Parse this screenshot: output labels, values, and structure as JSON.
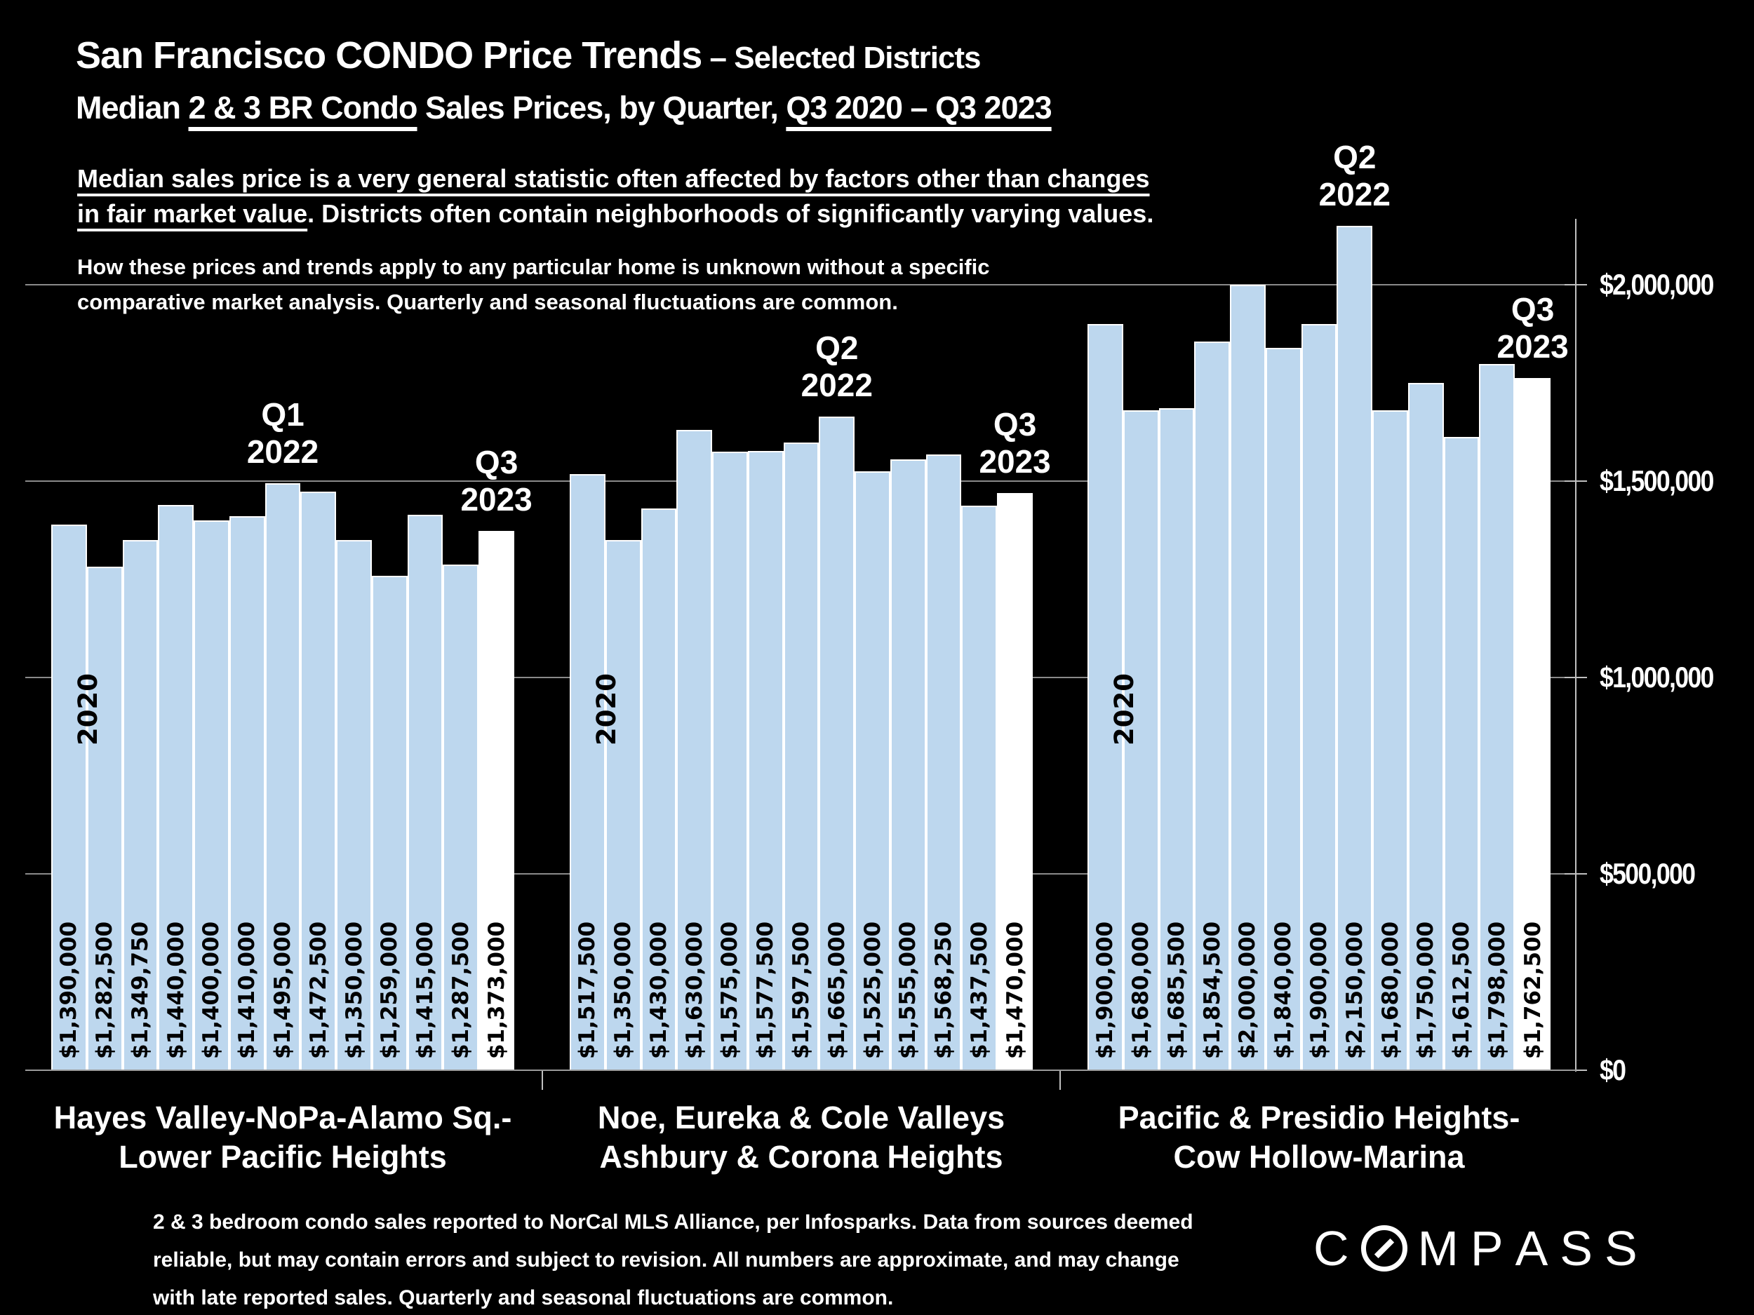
{
  "slide": {
    "title_line1_main": "San Francisco CONDO Price Trends",
    "title_line1_suffix": " – Selected Districts",
    "title_line2_segments": [
      {
        "text": "Median ",
        "underline": false
      },
      {
        "text": "2 & 3 BR Condo",
        "underline": true
      },
      {
        "text": " Sales Prices, by Quarter, ",
        "underline": false
      },
      {
        "text": "Q3 2020 – Q3 2023",
        "underline": true
      }
    ],
    "para1_lines": [
      [
        {
          "text": "Median sales price is a very general statistic often affected by factors other than changes",
          "underline": true
        }
      ],
      [
        {
          "text": "in fair market value",
          "underline": true
        },
        {
          "text": ". Districts often contain neighborhoods of significantly varying values.",
          "underline": false
        }
      ]
    ],
    "para2_lines": [
      "How these prices and trends apply to any particular home is unknown without a specific",
      "comparative market analysis. Quarterly and seasonal fluctuations are common."
    ],
    "footer_lines": [
      "2 & 3 bedroom condo sales reported to NorCal MLS Alliance, per Infosparks. Data from sources deemed",
      "reliable, but may contain errors and subject to revision. All numbers are approximate, and may change",
      "with late reported sales. Quarterly and seasonal fluctuations are common."
    ],
    "logo_text": "COMPASS"
  },
  "chart_data": {
    "type": "bar",
    "title": "Median 2 & 3 BR Condo Sales Prices, by Quarter, Q3 2020 – Q3 2023",
    "ylabel": "",
    "ylim": [
      0,
      2170000
    ],
    "grid": true,
    "legend_position": "none",
    "y_ticks": [
      {
        "label": "$2,000,000",
        "value": 2000000
      },
      {
        "label": "$1,500,000",
        "value": 1500000
      },
      {
        "label": "$1,000,000",
        "value": 1000000
      },
      {
        "label": "$500,000",
        "value": 500000
      },
      {
        "label": "$0",
        "value": 0
      }
    ],
    "quarter_range": "Q3 2020 – Q3 2023",
    "period_start_label": "2020",
    "colors": {
      "bar": "#bdd7ee",
      "highlight": "#ffffff",
      "grid": "#8a8a8a",
      "axis": "#c0c0c0",
      "value_text": "#000000"
    },
    "groups": [
      {
        "district_lines": [
          "Hayes Valley-NoPa-Alamo Sq.-",
          "Lower Pacific Heights"
        ],
        "values": [
          1390000,
          1282500,
          1349750,
          1440000,
          1400000,
          1410000,
          1495000,
          1472500,
          1350000,
          1259000,
          1415000,
          1287500,
          1373000
        ],
        "labels": [
          "$1,390,000",
          "$1,282,500",
          "$1,349,750",
          "$1,440,000",
          "$1,400,000",
          "$1,410,000",
          "$1,495,000",
          "$1,472,500",
          "$1,350,000",
          "$1,259,000",
          "$1,415,000",
          "$1,287,500",
          "$1,373,000"
        ],
        "highlight_index": 12,
        "annotations": [
          {
            "lines": [
              "Q1",
              "2022"
            ],
            "bar": 6
          },
          {
            "lines": [
              "Q3",
              "2023"
            ],
            "bar": 12
          }
        ]
      },
      {
        "district_lines": [
          "Noe, Eureka & Cole Valleys",
          "Ashbury & Corona Heights"
        ],
        "values": [
          1517500,
          1350000,
          1430000,
          1630000,
          1575000,
          1577500,
          1597500,
          1665000,
          1525000,
          1555000,
          1568250,
          1437500,
          1470000
        ],
        "labels": [
          "$1,517,500",
          "$1,350,000",
          "$1,430,000",
          "$1,630,000",
          "$1,575,000",
          "$1,577,500",
          "$1,597,500",
          "$1,665,000",
          "$1,525,000",
          "$1,555,000",
          "$1,568,250",
          "$1,437,500",
          "$1,470,000"
        ],
        "highlight_index": 12,
        "annotations": [
          {
            "lines": [
              "Q2",
              "2022"
            ],
            "bar": 7
          },
          {
            "lines": [
              "Q3",
              "2023"
            ],
            "bar": 12
          }
        ]
      },
      {
        "district_lines": [
          "Pacific & Presidio Heights-",
          "Cow Hollow-Marina"
        ],
        "values": [
          1900000,
          1680000,
          1685500,
          1854500,
          2000000,
          1840000,
          1900000,
          2150000,
          1680000,
          1750000,
          1612500,
          1798000,
          1762500
        ],
        "labels": [
          "$1,900,000",
          "$1,680,000",
          "$1,685,500",
          "$1,854,500",
          "$2,000,000",
          "$1,840,000",
          "$1,900,000",
          "$2,150,000",
          "$1,680,000",
          "$1,750,000",
          "$1,612,500",
          "$1,798,000",
          "$1,762,500"
        ],
        "highlight_index": 12,
        "annotations": [
          {
            "lines": [
              "Q2",
              "2022"
            ],
            "bar": 7
          },
          {
            "lines": [
              "Q3",
              "2023"
            ],
            "bar": 12
          }
        ]
      }
    ]
  }
}
